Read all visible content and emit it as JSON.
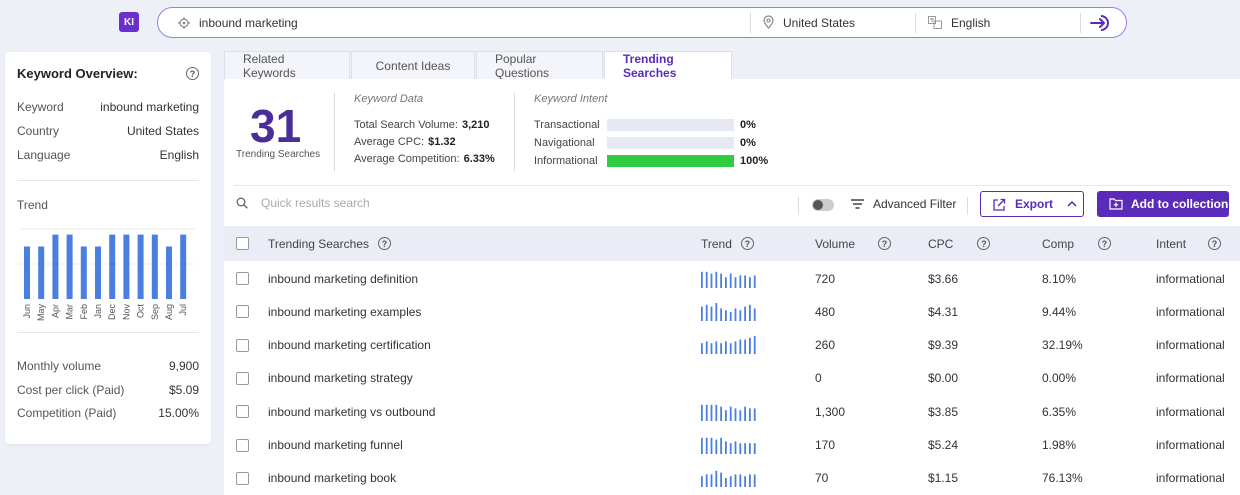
{
  "header": {
    "logo_text": "KI",
    "search_value": "inbound marketing",
    "country": "United States",
    "language": "English"
  },
  "overview": {
    "title": "Keyword Overview:",
    "keyword_label": "Keyword",
    "keyword_value": "inbound marketing",
    "country_label": "Country",
    "country_value": "United States",
    "language_label": "Language",
    "language_value": "English",
    "trend_label": "Trend",
    "trend_months": [
      "Jun",
      "May",
      "Apr",
      "Mar",
      "Feb",
      "Jan",
      "Dec",
      "Nov",
      "Oct",
      "Sep",
      "Aug",
      "Jul"
    ],
    "trend_values": [
      0.75,
      0.75,
      0.92,
      0.92,
      0.75,
      0.75,
      0.92,
      0.92,
      0.92,
      0.92,
      0.75,
      0.92
    ],
    "monthly_label": "Monthly volume",
    "monthly_value": "9,900",
    "cpc_label": "Cost per click (Paid)",
    "cpc_value": "$5.09",
    "comp_label": "Competition (Paid)",
    "comp_value": "15.00%"
  },
  "tabs": [
    "Related Keywords",
    "Content Ideas",
    "Popular Questions",
    "Trending Searches"
  ],
  "summary": {
    "count": "31",
    "count_label": "Trending Searches",
    "kd_title": "Keyword Data",
    "total_label": "Total Search Volume:",
    "total_value": "3,210",
    "cpc_label": "Average CPC:",
    "cpc_value": "$1.32",
    "comp_label": "Average Competition:",
    "comp_value": "6.33%",
    "ki_title": "Keyword Intent",
    "intents": [
      {
        "label": "Transactional",
        "pct": "0%",
        "fill": 0
      },
      {
        "label": "Navigational",
        "pct": "0%",
        "fill": 0
      },
      {
        "label": "Informational",
        "pct": "100%",
        "fill": 1
      }
    ]
  },
  "toolbar": {
    "search_placeholder": "Quick results search",
    "advanced_filter": "Advanced Filter",
    "export": "Export",
    "add_collection": "Add to collection"
  },
  "table": {
    "headers": [
      "Trending Searches",
      "Trend",
      "Volume",
      "CPC",
      "Comp",
      "Intent"
    ],
    "rows": [
      {
        "keyword": "inbound marketing definition",
        "volume": "720",
        "cpc": "$3.66",
        "comp": "8.10%",
        "intent": "informational",
        "trend": [
          0.9,
          0.9,
          0.8,
          0.9,
          0.8,
          0.6,
          0.8,
          0.6,
          0.7,
          0.7,
          0.6,
          0.7
        ]
      },
      {
        "keyword": "inbound marketing examples",
        "volume": "480",
        "cpc": "$4.31",
        "comp": "9.44%",
        "intent": "informational",
        "trend": [
          0.8,
          0.9,
          0.8,
          1.0,
          0.7,
          0.6,
          0.5,
          0.7,
          0.6,
          0.8,
          0.9,
          0.7
        ]
      },
      {
        "keyword": "inbound marketing certification",
        "volume": "260",
        "cpc": "$9.39",
        "comp": "32.19%",
        "intent": "informational",
        "trend": [
          0.6,
          0.7,
          0.6,
          0.7,
          0.6,
          0.7,
          0.6,
          0.7,
          0.8,
          0.8,
          0.9,
          1.0
        ]
      },
      {
        "keyword": "inbound marketing strategy",
        "volume": "0",
        "cpc": "$0.00",
        "comp": "0.00%",
        "intent": "informational",
        "trend": []
      },
      {
        "keyword": "inbound marketing vs outbound",
        "volume": "1,300",
        "cpc": "$3.85",
        "comp": "6.35%",
        "intent": "informational",
        "trend": [
          0.9,
          0.9,
          0.9,
          0.9,
          0.8,
          0.6,
          0.8,
          0.7,
          0.6,
          0.8,
          0.7,
          0.7
        ]
      },
      {
        "keyword": "inbound marketing funnel",
        "volume": "170",
        "cpc": "$5.24",
        "comp": "1.98%",
        "intent": "informational",
        "trend": [
          0.9,
          0.9,
          0.9,
          0.8,
          0.9,
          0.7,
          0.6,
          0.7,
          0.6,
          0.6,
          0.6,
          0.6
        ]
      },
      {
        "keyword": "inbound marketing book",
        "volume": "70",
        "cpc": "$1.15",
        "comp": "76.13%",
        "intent": "informational",
        "trend": [
          0.6,
          0.7,
          0.7,
          0.9,
          0.8,
          0.5,
          0.6,
          0.7,
          0.7,
          0.6,
          0.7,
          0.7
        ]
      }
    ]
  }
}
